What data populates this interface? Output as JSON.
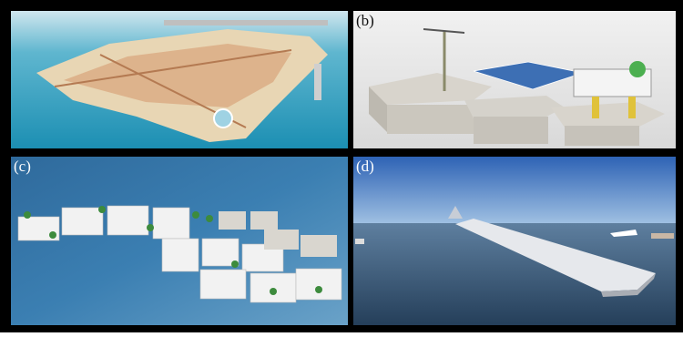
{
  "labels": [
    "(b)",
    "(c)",
    "(d)"
  ]
}
